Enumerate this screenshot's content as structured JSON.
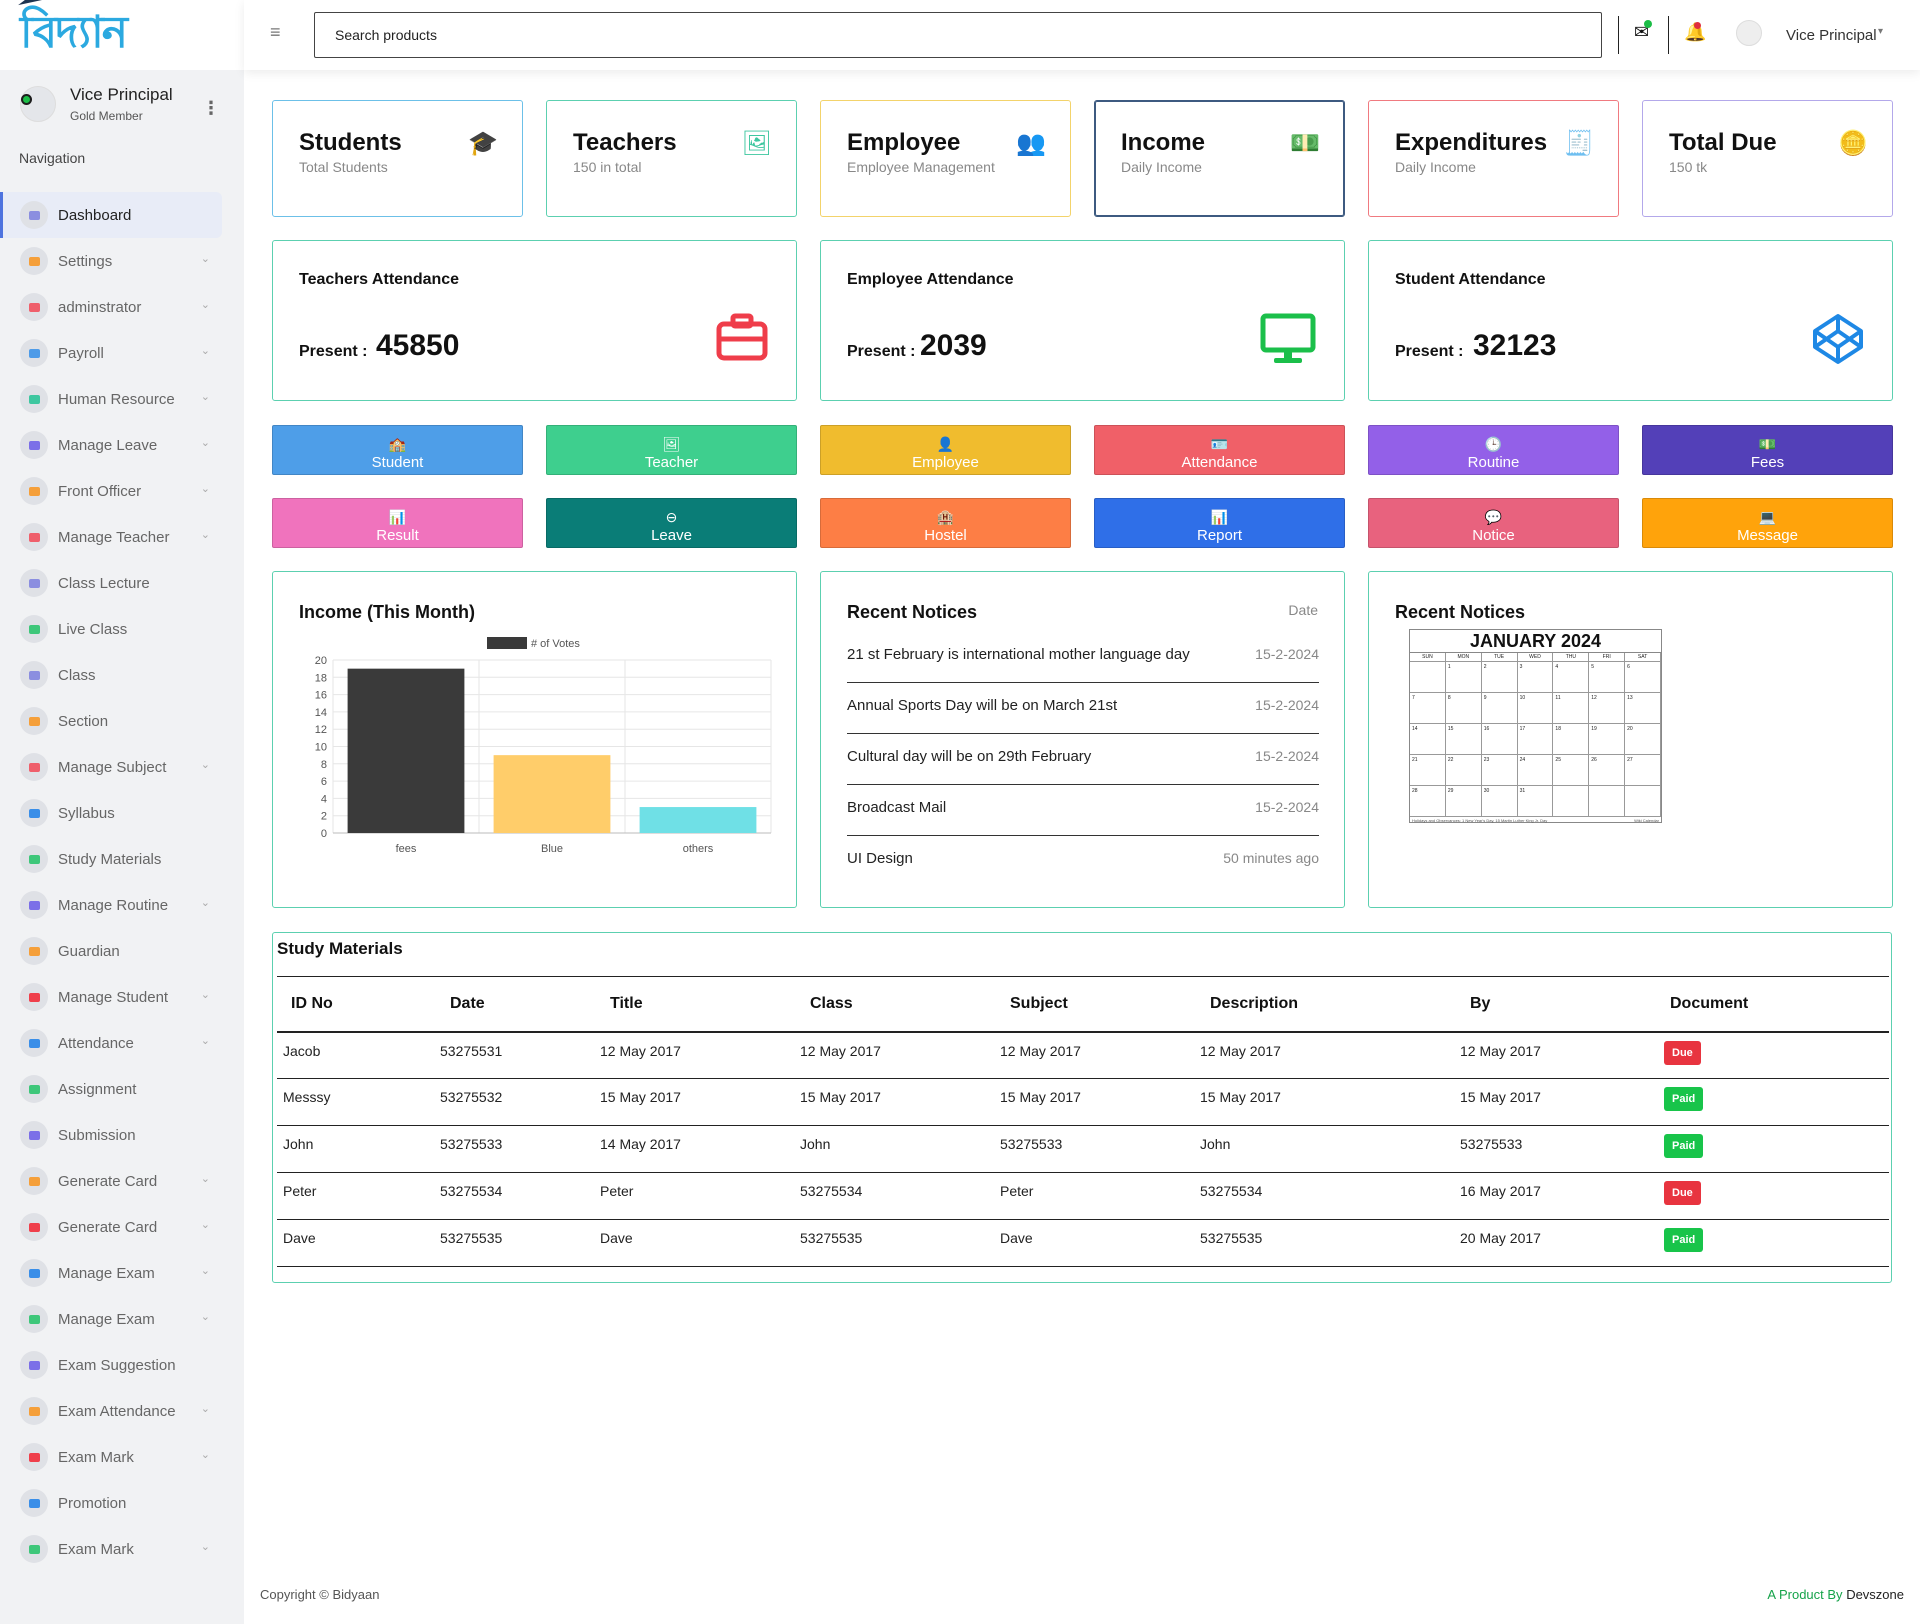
{
  "brand": {
    "logo_text": "বিদ্যান"
  },
  "user": {
    "name": "Vice Principal",
    "role": "Gold Member"
  },
  "nav_title": "Navigation",
  "nav": [
    {
      "label": "Dashboard",
      "icon": "gauge-icon",
      "color": "#8b8ee0",
      "chevron": false,
      "active": true
    },
    {
      "label": "Settings",
      "icon": "settings-icon",
      "color": "#f59f3a",
      "chevron": true
    },
    {
      "label": "adminstrator",
      "icon": "admin-icon",
      "color": "#ef5f6b",
      "chevron": true
    },
    {
      "label": "Payroll",
      "icon": "payroll-icon",
      "color": "#4e9be8",
      "chevron": true
    },
    {
      "label": "Human Resource",
      "icon": "hr-icon",
      "color": "#3ec7a0",
      "chevron": true
    },
    {
      "label": "Manage Leave",
      "icon": "leave-icon",
      "color": "#7b6fe8",
      "chevron": true
    },
    {
      "label": "Front Officer",
      "icon": "front-office-icon",
      "color": "#f59f3a",
      "chevron": true
    },
    {
      "label": "Manage Teacher",
      "icon": "teacher-icon",
      "color": "#ef5f6b",
      "chevron": true
    },
    {
      "label": "Class Lecture",
      "icon": "lecture-icon",
      "color": "#8b8ee0",
      "chevron": false
    },
    {
      "label": "Live Class",
      "icon": "live-class-icon",
      "color": "#3ec77a",
      "chevron": false
    },
    {
      "label": "Class",
      "icon": "class-icon",
      "color": "#8b8ee0",
      "chevron": false
    },
    {
      "label": "Section",
      "icon": "section-icon",
      "color": "#f59f3a",
      "chevron": false
    },
    {
      "label": "Manage Subject",
      "icon": "subject-icon",
      "color": "#ef5f6b",
      "chevron": true
    },
    {
      "label": "Syllabus",
      "icon": "syllabus-icon",
      "color": "#3a8ee8",
      "chevron": false
    },
    {
      "label": "Study Materials",
      "icon": "study-materials-icon",
      "color": "#3ec77a",
      "chevron": false
    },
    {
      "label": "Manage Routine",
      "icon": "routine-icon",
      "color": "#7b6fe8",
      "chevron": true
    },
    {
      "label": "Guardian",
      "icon": "guardian-icon",
      "color": "#f59f3a",
      "chevron": false
    },
    {
      "label": "Manage Student",
      "icon": "student-icon",
      "color": "#ef3f4b",
      "chevron": true
    },
    {
      "label": "Attendance",
      "icon": "attendance-icon",
      "color": "#3a8ee8",
      "chevron": true
    },
    {
      "label": "Assignment",
      "icon": "assignment-icon",
      "color": "#3ec77a",
      "chevron": false
    },
    {
      "label": "Submission",
      "icon": "submission-icon",
      "color": "#7b6fe8",
      "chevron": false
    },
    {
      "label": "Generate Card",
      "icon": "card-icon",
      "color": "#f59f3a",
      "chevron": true
    },
    {
      "label": "Generate Card",
      "icon": "card-icon",
      "color": "#ef3f4b",
      "chevron": true
    },
    {
      "label": "Manage Exam",
      "icon": "exam-icon",
      "color": "#3a8ee8",
      "chevron": true
    },
    {
      "label": "Manage Exam",
      "icon": "exam-icon",
      "color": "#3ec77a",
      "chevron": true
    },
    {
      "label": "Exam Suggestion",
      "icon": "suggestion-icon",
      "color": "#7b6fe8",
      "chevron": false
    },
    {
      "label": "Exam Attendance",
      "icon": "exam-attendance-icon",
      "color": "#f59f3a",
      "chevron": true
    },
    {
      "label": "Exam Mark",
      "icon": "exam-mark-icon",
      "color": "#ef3f4b",
      "chevron": true
    },
    {
      "label": "Promotion",
      "icon": "promotion-icon",
      "color": "#3a8ee8",
      "chevron": false
    },
    {
      "label": "Exam Mark",
      "icon": "exam-mark-icon",
      "color": "#3ec77a",
      "chevron": true
    }
  ],
  "topbar": {
    "search_placeholder": "Search products",
    "user": "Vice Principal"
  },
  "stats": [
    {
      "title": "Students",
      "sub": "Total Students",
      "border": "#6cc0e8",
      "icon_color": "#4aa6e8",
      "icon": "graduation-cap-icon",
      "glyph": "🎓"
    },
    {
      "title": "Teachers",
      "sub": "150 in total",
      "border": "#5cd0b0",
      "icon_color": "#3ec7a0",
      "icon": "teacher-board-icon",
      "glyph": "🖼"
    },
    {
      "title": "Employee",
      "sub": "Employee Management",
      "border": "#f3d36b",
      "icon_color": "#f0b72c",
      "icon": "users-icon",
      "glyph": "👥"
    },
    {
      "title": "Income",
      "sub": "Daily Income",
      "border": "#3d5a80",
      "icon_color": "#2f4e7a",
      "icon": "money-icon",
      "glyph": "💵"
    },
    {
      "title": "Expenditures",
      "sub": "Daily Income",
      "border": "#f07a80",
      "icon_color": "#ef4b55",
      "icon": "receipt-icon",
      "glyph": "🧾"
    },
    {
      "title": "Total Due",
      "sub": "150 tk",
      "border": "#b3a8ea",
      "icon_color": "#9f8fe8",
      "icon": "coins-icon",
      "glyph": "🪙"
    }
  ],
  "attendance": [
    {
      "title": "Teachers Attendance",
      "label": "Present :",
      "value": "45850",
      "icon": "briefcase-icon",
      "color": "#ef3d4a"
    },
    {
      "title": "Employee Attendance",
      "label": "Present :",
      "value": "2039",
      "icon": "monitor-icon",
      "color": "#1bbf4a"
    },
    {
      "title": "Student Attendance",
      "label": "Present :",
      "value": "32123",
      "icon": "codepen-icon",
      "color": "#1e88e5"
    }
  ],
  "quick_buttons": [
    {
      "label": "Student",
      "color": "#4e9ee8",
      "icon": "school-icon",
      "glyph": "🏫"
    },
    {
      "label": "Teacher",
      "color": "#3ecf8e",
      "icon": "teacher-icon",
      "glyph": "🖼"
    },
    {
      "label": "Employee",
      "color": "#f0bc2e",
      "icon": "person-icon",
      "glyph": "👤"
    },
    {
      "label": "Attendance",
      "color": "#f06068",
      "icon": "id-badge-icon",
      "glyph": "🪪"
    },
    {
      "label": "Routine",
      "color": "#9360e8",
      "icon": "clock-icon",
      "glyph": "🕒"
    },
    {
      "label": "Fees",
      "color": "#5340b8",
      "icon": "money-icon",
      "glyph": "💵"
    },
    {
      "label": "Result",
      "color": "#f073bd",
      "icon": "chart-icon",
      "glyph": "📊"
    },
    {
      "label": "Leave",
      "color": "#0a7d77",
      "icon": "minus-circle-icon",
      "glyph": "⊖"
    },
    {
      "label": "Hostel",
      "color": "#fd7e45",
      "icon": "hotel-icon",
      "glyph": "🏨"
    },
    {
      "label": "Report",
      "color": "#2f6fe8",
      "icon": "report-icon",
      "glyph": "📊"
    },
    {
      "label": "Notice",
      "color": "#e8627e",
      "icon": "comment-icon",
      "glyph": "💬"
    },
    {
      "label": "Message",
      "color": "#ffa30b",
      "icon": "laptop-icon",
      "glyph": "💻"
    }
  ],
  "income_panel": {
    "title": "Income (This Month)"
  },
  "chart_data": {
    "type": "bar",
    "title": "",
    "categories": [
      "fees",
      "Blue",
      "others"
    ],
    "series": [
      {
        "name": "# of Votes",
        "values": [
          19,
          9,
          3
        ]
      }
    ],
    "bar_colors": [
      "#3a3a3a",
      "#ffcd6a",
      "#6fe0e6"
    ],
    "ylim": [
      0,
      20
    ],
    "yticks": [
      0,
      2,
      4,
      6,
      8,
      10,
      12,
      14,
      16,
      18,
      20
    ],
    "grid": true,
    "legend": "top"
  },
  "notices": {
    "title": "Recent Notices",
    "date_header": "Date",
    "items": [
      {
        "text": "21 st February is international mother language day",
        "date": "15-2-2024"
      },
      {
        "text": "Annual Sports Day will be on March 21st",
        "date": "15-2-2024"
      },
      {
        "text": "Cultural day will be on 29th February",
        "date": "15-2-2024"
      },
      {
        "text": "Broadcast Mail",
        "date": "15-2-2024"
      },
      {
        "text": "UI Design",
        "date": "50 minutes ago"
      }
    ]
  },
  "calendar_panel": {
    "title": "Recent Notices",
    "month": "JANUARY 2024",
    "weekdays": [
      "SUN",
      "MON",
      "TUE",
      "WED",
      "THU",
      "FRI",
      "SAT"
    ],
    "days": [
      "",
      "1",
      "2",
      "3",
      "4",
      "5",
      "6",
      "7",
      "8",
      "9",
      "10",
      "11",
      "12",
      "13",
      "14",
      "15",
      "16",
      "17",
      "18",
      "19",
      "20",
      "21",
      "22",
      "23",
      "24",
      "25",
      "26",
      "27",
      "28",
      "29",
      "30",
      "31",
      "",
      "",
      ""
    ],
    "footer": "Holidays and Observances: 1 New Year's Day, 15 Martin Luther King Jr. Day",
    "credit": "Wiki Calendar"
  },
  "study_table": {
    "title": "Study Materials",
    "columns": [
      "ID No",
      "Date",
      "Title",
      "Class",
      "Subject",
      "Description",
      "By",
      "Document"
    ],
    "rows": [
      {
        "cells": [
          "Jacob",
          "53275531",
          "12 May 2017",
          "12 May 2017",
          "12 May 2017",
          "12 May 2017",
          "12 May 2017"
        ],
        "status": "Due"
      },
      {
        "cells": [
          "Messsy",
          "53275532",
          "15 May 2017",
          "15 May 2017",
          "15 May 2017",
          "15 May 2017",
          "15 May 2017"
        ],
        "status": "Paid"
      },
      {
        "cells": [
          "John",
          "53275533",
          "14 May 2017",
          "John",
          "53275533",
          "John",
          "53275533"
        ],
        "status": "Paid"
      },
      {
        "cells": [
          "Peter",
          "53275534",
          "Peter",
          "53275534",
          "Peter",
          "53275534",
          "16 May 2017"
        ],
        "status": "Due"
      },
      {
        "cells": [
          "Dave",
          "53275535",
          "Dave",
          "53275535",
          "Dave",
          "53275535",
          "20 May 2017"
        ],
        "status": "Paid"
      }
    ],
    "status_colors": {
      "Due": "#e8343f",
      "Paid": "#18c44a"
    }
  },
  "footer": {
    "copyright": "Copyright © Bidyaan",
    "product_prefix": "A Product By",
    "product_name": "Devszone"
  }
}
